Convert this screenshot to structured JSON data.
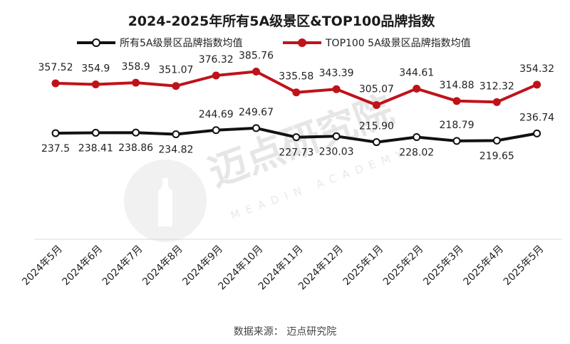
{
  "chart_data": {
    "type": "line",
    "title": "2024-2025年所有5A级景区&TOP100品牌指数",
    "categories": [
      "2024年5月",
      "2024年6月",
      "2024年7月",
      "2024年8月",
      "2024年9月",
      "2024年10月",
      "2024年11月",
      "2024年12月",
      "2025年1月",
      "2025年2月",
      "2025年3月",
      "2025年4月",
      "2025年5月"
    ],
    "series": [
      {
        "name": "所有5A级景区品牌指数均值",
        "color": "#111111",
        "values": [
          237.5,
          238.41,
          238.86,
          234.82,
          244.69,
          249.67,
          227.73,
          230.03,
          215.9,
          228.02,
          218.79,
          219.65,
          236.74
        ],
        "labels": [
          "237.5",
          "238.41",
          "238.86",
          "234.82",
          "244.69",
          "249.67",
          "227.73",
          "230.03",
          "215.90",
          "228.02",
          "218.79",
          "219.65",
          "236.74"
        ]
      },
      {
        "name": "TOP100 5A级景区品牌指数均值",
        "color": "#c0121a",
        "values": [
          357.52,
          354.9,
          358.9,
          351.07,
          376.32,
          385.76,
          335.58,
          343.39,
          305.07,
          344.61,
          314.88,
          312.32,
          354.32
        ],
        "labels": [
          "357.52",
          "354.9",
          "358.9",
          "351.07",
          "376.32",
          "385.76",
          "335.58",
          "343.39",
          "305.07",
          "344.61",
          "314.88",
          "312.32",
          "354.32"
        ]
      }
    ],
    "legend_position": "top",
    "grid": false,
    "source": "数据来源：  迈点研究院"
  },
  "watermark": {
    "text": "迈点研究院",
    "sub": "MEADIN ACADEMY"
  }
}
